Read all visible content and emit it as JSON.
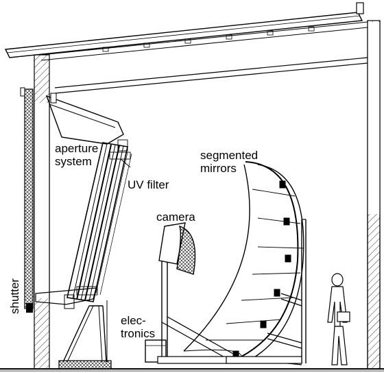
{
  "labels": {
    "aperture_system_line1": "aperture",
    "aperture_system_line2": "system",
    "uv_filter": "UV filter",
    "segmented_mirrors_line1": "segmented",
    "segmented_mirrors_line2": "mirrors",
    "camera": "camera",
    "electronics_line1": "elec-",
    "electronics_line2": "tronics",
    "shutter": "shutter"
  },
  "colors": {
    "line": "#000000",
    "background": "#ffffff"
  }
}
